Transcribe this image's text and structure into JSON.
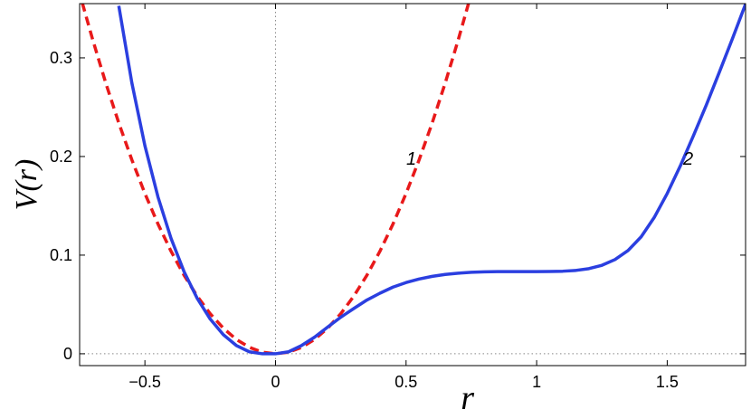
{
  "chart_data": {
    "type": "line",
    "title": "",
    "xlabel": "r",
    "ylabel": "V(r)",
    "xlim": [
      -0.75,
      1.8
    ],
    "ylim": [
      -0.012,
      0.355
    ],
    "x_ticks": [
      {
        "value": -0.5,
        "label": "−0.5"
      },
      {
        "value": 0,
        "label": "0"
      },
      {
        "value": 0.5,
        "label": "0.5"
      },
      {
        "value": 1,
        "label": "1"
      },
      {
        "value": 1.5,
        "label": "1.5"
      }
    ],
    "y_ticks": [
      {
        "value": 0,
        "label": "0"
      },
      {
        "value": 0.1,
        "label": "0.1"
      },
      {
        "value": 0.2,
        "label": "0.2"
      },
      {
        "value": 0.3,
        "label": "0.3"
      }
    ],
    "grid": false,
    "reference_lines": {
      "x_zero_dotted": true,
      "y_zero_dotted": true
    },
    "series": [
      {
        "label": "1",
        "color": "#e8191a",
        "style": "dashed",
        "x": [
          -0.74,
          -0.7,
          -0.65,
          -0.6,
          -0.55,
          -0.5,
          -0.45,
          -0.4,
          -0.35,
          -0.3,
          -0.25,
          -0.2,
          -0.15,
          -0.1,
          -0.05,
          0,
          0.05,
          0.1,
          0.15,
          0.2,
          0.25,
          0.3,
          0.35,
          0.4,
          0.45,
          0.5,
          0.55,
          0.6,
          0.65,
          0.7,
          0.74
        ],
        "y": [
          0.3559,
          0.3185,
          0.2746,
          0.234,
          0.1966,
          0.1625,
          0.1316,
          0.104,
          0.0796,
          0.0585,
          0.0406,
          0.026,
          0.0146,
          0.0065,
          0.0016,
          0,
          0.0016,
          0.0065,
          0.0146,
          0.026,
          0.0406,
          0.0585,
          0.0796,
          0.104,
          0.1316,
          0.1625,
          0.1966,
          0.234,
          0.2746,
          0.3185,
          0.3559
        ]
      },
      {
        "label": "2",
        "color": "#2b3fe0",
        "style": "solid",
        "x": [
          -0.6,
          -0.55,
          -0.5,
          -0.45,
          -0.4,
          -0.35,
          -0.3,
          -0.25,
          -0.2,
          -0.15,
          -0.1,
          -0.05,
          0,
          0.05,
          0.1,
          0.15,
          0.2,
          0.25,
          0.3,
          0.35,
          0.4,
          0.45,
          0.5,
          0.55,
          0.6,
          0.65,
          0.7,
          0.75,
          0.8,
          0.85,
          0.9,
          0.95,
          1,
          1.05,
          1.1,
          1.15,
          1.2,
          1.25,
          1.3,
          1.35,
          1.4,
          1.45,
          1.5,
          1.55,
          1.6,
          1.65,
          1.7,
          1.75,
          1.8
        ],
        "y": [
          0.3528,
          0.2746,
          0.2109,
          0.159,
          0.117,
          0.0832,
          0.0563,
          0.0352,
          0.0194,
          0.0084,
          0.002,
          0,
          0,
          0.002,
          0.0084,
          0.0169,
          0.0271,
          0.0371,
          0.0459,
          0.0545,
          0.0614,
          0.0676,
          0.0722,
          0.0758,
          0.0785,
          0.0804,
          0.0817,
          0.0826,
          0.0831,
          0.0833,
          0.0833,
          0.0833,
          0.0833,
          0.0834,
          0.0837,
          0.0845,
          0.0863,
          0.0897,
          0.0955,
          0.1047,
          0.1185,
          0.1381,
          0.1625,
          0.1904,
          0.2209,
          0.2524,
          0.2858,
          0.3197,
          0.3546
        ]
      }
    ],
    "curve_labels": [
      {
        "text": "1",
        "x": 0.52,
        "y": 0.198
      },
      {
        "text": "2",
        "x": 1.58,
        "y": 0.198
      }
    ]
  }
}
